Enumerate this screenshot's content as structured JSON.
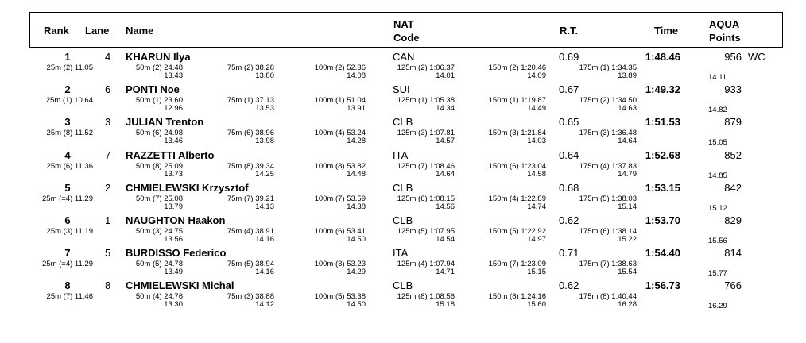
{
  "header": {
    "rank": "Rank",
    "lane": "Lane",
    "name": "Name",
    "nat_line1": "NAT",
    "nat_line2": "Code",
    "rt": "R.T.",
    "time": "Time",
    "aqua_line1": "AQUA",
    "aqua_line2": "Points"
  },
  "rows": [
    {
      "rank": "1",
      "lane": "4",
      "name": "KHARUN Ilya",
      "nat": "CAN",
      "rt": "0.69",
      "time": "1:48.46",
      "points": "956",
      "rec": "WC",
      "s25": "25m (2) 11.05",
      "s50": "50m (2) 24.48",
      "s50d": "13.43",
      "s75": "75m (2) 38.28",
      "s75d": "13.80",
      "s100": "100m (2) 52.36",
      "s100d": "14.08",
      "s125": "125m (2) 1:06.37",
      "s125d": "14.01",
      "s150": "150m (2) 1:20.46",
      "s150d": "14.09",
      "s175": "175m (1) 1:34.35",
      "s175d": "13.89",
      "last": "14.11"
    },
    {
      "rank": "2",
      "lane": "6",
      "name": "PONTI Noe",
      "nat": "SUI",
      "rt": "0.67",
      "time": "1:49.32",
      "points": "933",
      "rec": "",
      "s25": "25m (1) 10.64",
      "s50": "50m (1) 23.60",
      "s50d": "12.96",
      "s75": "75m (1) 37.13",
      "s75d": "13.53",
      "s100": "100m (1) 51.04",
      "s100d": "13.91",
      "s125": "125m (1) 1:05.38",
      "s125d": "14.34",
      "s150": "150m (1) 1:19.87",
      "s150d": "14.49",
      "s175": "175m (2) 1:34.50",
      "s175d": "14.63",
      "last": "14.82"
    },
    {
      "rank": "3",
      "lane": "3",
      "name": "JULIAN Trenton",
      "nat": "CLB",
      "rt": "0.65",
      "time": "1:51.53",
      "points": "879",
      "rec": "",
      "s25": "25m (8) 11.52",
      "s50": "50m (6) 24.98",
      "s50d": "13.46",
      "s75": "75m (6) 38.96",
      "s75d": "13.98",
      "s100": "100m (4) 53.24",
      "s100d": "14.28",
      "s125": "125m (3) 1:07.81",
      "s125d": "14.57",
      "s150": "150m (3) 1:21.84",
      "s150d": "14.03",
      "s175": "175m (3) 1:36.48",
      "s175d": "14.64",
      "last": "15.05"
    },
    {
      "rank": "4",
      "lane": "7",
      "name": "RAZZETTI Alberto",
      "nat": "ITA",
      "rt": "0.64",
      "time": "1:52.68",
      "points": "852",
      "rec": "",
      "s25": "25m (6) 11.36",
      "s50": "50m (8) 25.09",
      "s50d": "13.73",
      "s75": "75m (8) 39.34",
      "s75d": "14.25",
      "s100": "100m (8) 53.82",
      "s100d": "14.48",
      "s125": "125m (7) 1:08.46",
      "s125d": "14.64",
      "s150": "150m (6) 1:23.04",
      "s150d": "14.58",
      "s175": "175m (4) 1:37.83",
      "s175d": "14.79",
      "last": "14.85"
    },
    {
      "rank": "5",
      "lane": "2",
      "name": "CHMIELEWSKI Krzysztof",
      "nat": "CLB",
      "rt": "0.68",
      "time": "1:53.15",
      "points": "842",
      "rec": "",
      "s25": "25m (=4) 11.29",
      "s50": "50m (7) 25.08",
      "s50d": "13.79",
      "s75": "75m (7) 39.21",
      "s75d": "14.13",
      "s100": "100m (7) 53.59",
      "s100d": "14.38",
      "s125": "125m (6) 1:08.15",
      "s125d": "14.56",
      "s150": "150m (4) 1:22.89",
      "s150d": "14.74",
      "s175": "175m (5) 1:38.03",
      "s175d": "15.14",
      "last": "15.12"
    },
    {
      "rank": "6",
      "lane": "1",
      "name": "NAUGHTON Haakon",
      "nat": "CLB",
      "rt": "0.62",
      "time": "1:53.70",
      "points": "829",
      "rec": "",
      "s25": "25m (3) 11.19",
      "s50": "50m (3) 24.75",
      "s50d": "13.56",
      "s75": "75m (4) 38.91",
      "s75d": "14.16",
      "s100": "100m (6) 53.41",
      "s100d": "14.50",
      "s125": "125m (5) 1:07.95",
      "s125d": "14.54",
      "s150": "150m (5) 1:22.92",
      "s150d": "14.97",
      "s175": "175m (6) 1:38.14",
      "s175d": "15.22",
      "last": "15.56"
    },
    {
      "rank": "7",
      "lane": "5",
      "name": "BURDISSO Federico",
      "nat": "ITA",
      "rt": "0.71",
      "time": "1:54.40",
      "points": "814",
      "rec": "",
      "s25": "25m (=4) 11.29",
      "s50": "50m (5) 24.78",
      "s50d": "13.49",
      "s75": "75m (5) 38.94",
      "s75d": "14.16",
      "s100": "100m (3) 53.23",
      "s100d": "14.29",
      "s125": "125m (4) 1:07.94",
      "s125d": "14.71",
      "s150": "150m (7) 1:23.09",
      "s150d": "15.15",
      "s175": "175m (7) 1:38.63",
      "s175d": "15.54",
      "last": "15.77"
    },
    {
      "rank": "8",
      "lane": "8",
      "name": "CHMIELEWSKI Michal",
      "nat": "CLB",
      "rt": "0.62",
      "time": "1:56.73",
      "points": "766",
      "rec": "",
      "s25": "25m (7) 11.46",
      "s50": "50m (4) 24.76",
      "s50d": "13.30",
      "s75": "75m (3) 38.88",
      "s75d": "14.12",
      "s100": "100m (5) 53.38",
      "s100d": "14.50",
      "s125": "125m (8) 1:08.56",
      "s125d": "15.18",
      "s150": "150m (8) 1:24.16",
      "s150d": "15.60",
      "s175": "175m (8) 1:40.44",
      "s175d": "16.28",
      "last": "16.29"
    }
  ]
}
